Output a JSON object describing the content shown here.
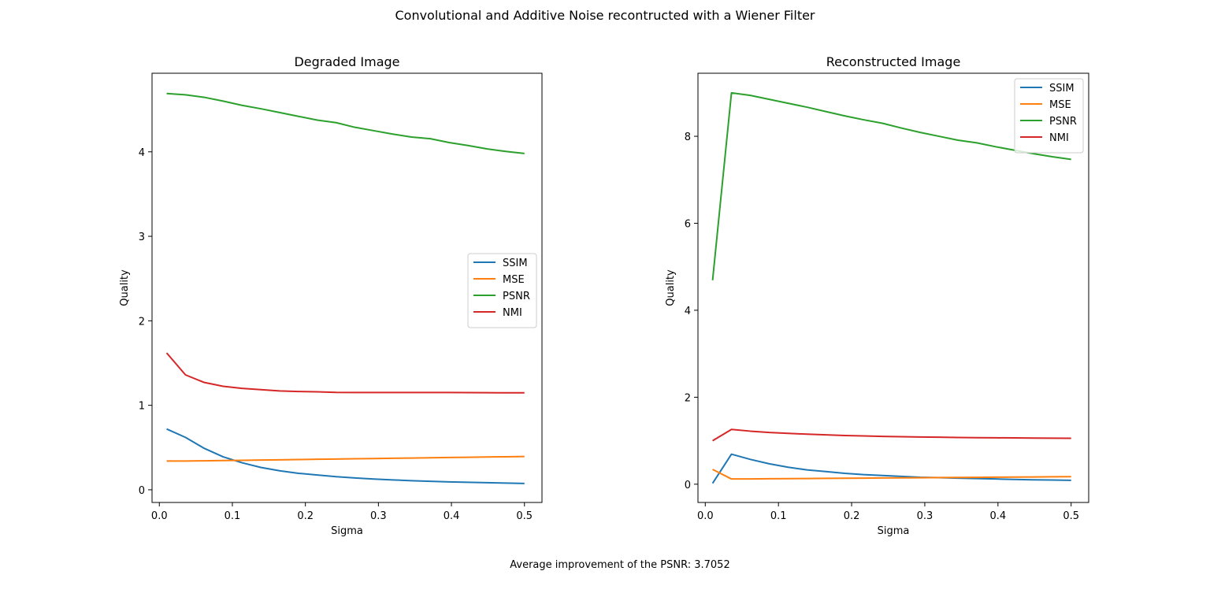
{
  "figure": {
    "suptitle": "Convolutional and Additive Noise recontructed with a Wiener Filter",
    "footnote": "Average improvement of the PSNR: 3.7052"
  },
  "chart_data": [
    {
      "type": "line",
      "title": "Degraded Image",
      "xlabel": "Sigma",
      "ylabel": "Quality",
      "xlim": [
        -0.01,
        0.524
      ],
      "ylim": [
        -0.15,
        4.93
      ],
      "xticks": [
        0.0,
        0.1,
        0.2,
        0.3,
        0.4,
        0.5
      ],
      "xtick_labels": [
        "0.0",
        "0.1",
        "0.2",
        "0.3",
        "0.4",
        "0.5"
      ],
      "yticks": [
        0,
        1,
        2,
        3,
        4
      ],
      "ytick_labels": [
        "0",
        "1",
        "2",
        "3",
        "4"
      ],
      "grid": false,
      "legend_position": "center-right",
      "x": [
        0.01,
        0.0358,
        0.0616,
        0.0874,
        0.1132,
        0.1389,
        0.1647,
        0.1905,
        0.2163,
        0.2421,
        0.2679,
        0.2937,
        0.3195,
        0.3453,
        0.3711,
        0.3968,
        0.4226,
        0.4484,
        0.4742,
        0.5
      ],
      "series": [
        {
          "name": "SSIM",
          "color": "#1f77b4",
          "values": [
            0.72,
            0.62,
            0.49,
            0.39,
            0.32,
            0.265,
            0.225,
            0.195,
            0.175,
            0.155,
            0.14,
            0.127,
            0.117,
            0.108,
            0.1,
            0.094,
            0.089,
            0.084,
            0.079,
            0.075
          ]
        },
        {
          "name": "MSE",
          "color": "#ff7f0e",
          "values": [
            0.34,
            0.341,
            0.343,
            0.346,
            0.349,
            0.352,
            0.355,
            0.358,
            0.361,
            0.364,
            0.367,
            0.37,
            0.373,
            0.376,
            0.379,
            0.382,
            0.385,
            0.388,
            0.391,
            0.394
          ]
        },
        {
          "name": "PSNR",
          "color": "#2ca02c",
          "values": [
            4.69,
            4.675,
            4.645,
            4.6,
            4.55,
            4.51,
            4.465,
            4.42,
            4.375,
            4.345,
            4.29,
            4.25,
            4.21,
            4.175,
            4.155,
            4.11,
            4.075,
            4.035,
            4.005,
            3.98
          ]
        },
        {
          "name": "NMI",
          "color": "#d62728",
          "values": [
            1.62,
            1.36,
            1.27,
            1.225,
            1.2,
            1.185,
            1.17,
            1.163,
            1.16,
            1.153,
            1.151,
            1.151,
            1.151,
            1.151,
            1.151,
            1.151,
            1.15,
            1.149,
            1.148,
            1.148
          ]
        }
      ]
    },
    {
      "type": "line",
      "title": "Reconstructed Image",
      "xlabel": "Sigma",
      "ylabel": "Quality",
      "xlim": [
        -0.01,
        0.524
      ],
      "ylim": [
        -0.42,
        9.45
      ],
      "xticks": [
        0.0,
        0.1,
        0.2,
        0.3,
        0.4,
        0.5
      ],
      "xtick_labels": [
        "0.0",
        "0.1",
        "0.2",
        "0.3",
        "0.4",
        "0.5"
      ],
      "yticks": [
        0,
        2,
        4,
        6,
        8
      ],
      "ytick_labels": [
        "0",
        "2",
        "4",
        "6",
        "8"
      ],
      "grid": false,
      "legend_position": "upper-right",
      "x": [
        0.01,
        0.0358,
        0.0616,
        0.0874,
        0.1132,
        0.1389,
        0.1647,
        0.1905,
        0.2163,
        0.2421,
        0.2679,
        0.2937,
        0.3195,
        0.3453,
        0.3711,
        0.3968,
        0.4226,
        0.4484,
        0.4742,
        0.5
      ],
      "series": [
        {
          "name": "SSIM",
          "color": "#1f77b4",
          "values": [
            0.02,
            0.69,
            0.57,
            0.47,
            0.39,
            0.33,
            0.29,
            0.25,
            0.22,
            0.2,
            0.18,
            0.16,
            0.15,
            0.14,
            0.13,
            0.12,
            0.11,
            0.1,
            0.095,
            0.09
          ]
        },
        {
          "name": "MSE",
          "color": "#ff7f0e",
          "values": [
            0.34,
            0.12,
            0.122,
            0.125,
            0.128,
            0.131,
            0.134,
            0.137,
            0.14,
            0.143,
            0.146,
            0.149,
            0.152,
            0.155,
            0.158,
            0.161,
            0.164,
            0.167,
            0.17,
            0.173
          ]
        },
        {
          "name": "PSNR",
          "color": "#2ca02c",
          "values": [
            4.69,
            9.0,
            8.94,
            8.85,
            8.76,
            8.67,
            8.57,
            8.47,
            8.38,
            8.3,
            8.19,
            8.09,
            8.0,
            7.91,
            7.85,
            7.76,
            7.68,
            7.6,
            7.53,
            7.47
          ]
        },
        {
          "name": "NMI",
          "color": "#d62728",
          "values": [
            1.0,
            1.26,
            1.22,
            1.19,
            1.17,
            1.15,
            1.135,
            1.12,
            1.11,
            1.1,
            1.092,
            1.085,
            1.08,
            1.075,
            1.07,
            1.067,
            1.064,
            1.061,
            1.058,
            1.056
          ]
        }
      ]
    }
  ]
}
